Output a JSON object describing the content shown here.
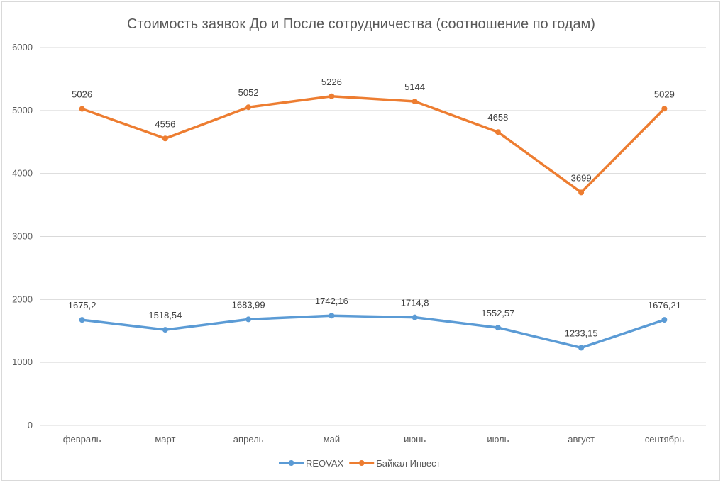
{
  "chart_data": {
    "type": "line",
    "title": "Стоимость заявок До и После сотрудничества (соотношение по годам)",
    "categories": [
      "февраль",
      "март",
      "апрель",
      "май",
      "июнь",
      "июль",
      "август",
      "сентябрь"
    ],
    "ylim": [
      0,
      6000
    ],
    "yticks": [
      0,
      1000,
      2000,
      3000,
      4000,
      5000,
      6000
    ],
    "grid": true,
    "legend": "bottom",
    "series": [
      {
        "name": "REOVAX",
        "color": "#5B9BD5",
        "values": [
          1675.2,
          1518.54,
          1683.99,
          1742.16,
          1714.8,
          1552.57,
          1233.15,
          1676.21
        ],
        "labels": [
          "1675,2",
          "1518,54",
          "1683,99",
          "1742,16",
          "1714,8",
          "1552,57",
          "1233,15",
          "1676,21"
        ]
      },
      {
        "name": "Байкал Инвест",
        "color": "#ED7D31",
        "values": [
          5026,
          4556,
          5052,
          5226,
          5144,
          4658,
          3699,
          5029
        ],
        "labels": [
          "5026",
          "4556",
          "5052",
          "5226",
          "5144",
          "4658",
          "3699",
          "5029"
        ]
      }
    ]
  }
}
